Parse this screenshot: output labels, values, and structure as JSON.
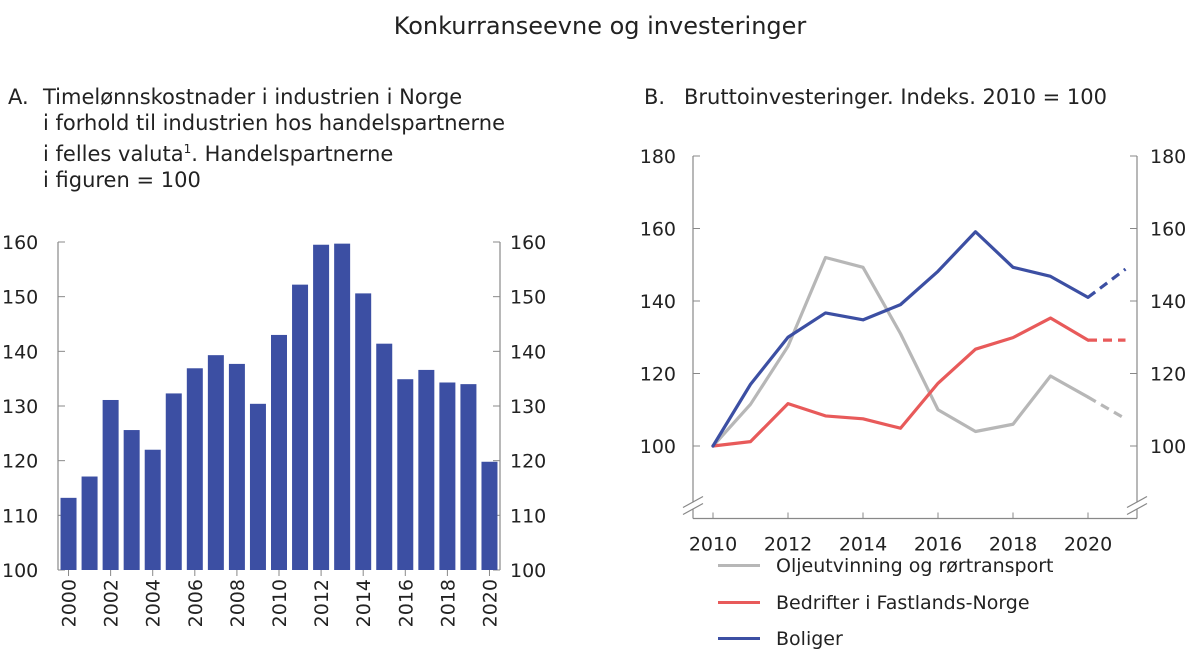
{
  "main_title": "Konkurranseevne og investeringer",
  "colors": {
    "bar": "#3c4fa3",
    "oil": "#b7b7b7",
    "mainland": "#e85a5a",
    "housing": "#3c4fa3",
    "axis": "#888888"
  },
  "chart_data": [
    {
      "type": "bar",
      "letter": "A.",
      "title_lines": [
        "Timelønnskostnader i industrien i Norge",
        "i forhold til industrien hos handelspartnerne",
        "i felles valuta",
        ". Handelspartnerne",
        "i figuren = 100"
      ],
      "footnote_mark": "1",
      "categories": [
        "2000",
        "2001",
        "2002",
        "2003",
        "2004",
        "2005",
        "2006",
        "2007",
        "2008",
        "2009",
        "2010",
        "2011",
        "2012",
        "2013",
        "2014",
        "2015",
        "2016",
        "2017",
        "2018",
        "2019",
        "2020"
      ],
      "tick_labels": [
        "2000",
        "2002",
        "2004",
        "2006",
        "2008",
        "2010",
        "2012",
        "2014",
        "2016",
        "2018",
        "2020"
      ],
      "values": [
        113.2,
        117.1,
        131.1,
        125.6,
        122.0,
        132.3,
        136.9,
        139.3,
        137.7,
        130.4,
        143.0,
        152.2,
        159.5,
        159.7,
        150.6,
        141.4,
        134.9,
        136.6,
        134.3,
        134.0,
        119.8
      ],
      "ylim": [
        100,
        160
      ],
      "yticks": [
        100,
        110,
        120,
        130,
        140,
        150,
        160
      ],
      "grid": false
    },
    {
      "type": "line",
      "letter": "B.",
      "title": "Bruttoinvesteringer. Indeks. 2010 = 100",
      "x": [
        2010,
        2011,
        2012,
        2013,
        2014,
        2015,
        2016,
        2017,
        2018,
        2019,
        2020,
        2021
      ],
      "xticks": [
        2010,
        2012,
        2014,
        2016,
        2018,
        2020
      ],
      "ylim": [
        80,
        180
      ],
      "yticks": [
        100,
        120,
        140,
        160,
        180
      ],
      "projection_from": 2020,
      "legend_position": "bottom",
      "grid": false,
      "series": [
        {
          "name": "Oljeutvinning og rørtransport",
          "color_key": "oil",
          "values": [
            100,
            111.5,
            127.5,
            152.0,
            149.3,
            131.0,
            110.0,
            104.0,
            106.0,
            119.3,
            113.5,
            107.5
          ]
        },
        {
          "name": "Bedrifter i Fastlands-Norge",
          "color_key": "mainland",
          "values": [
            100,
            101.2,
            111.7,
            108.3,
            107.5,
            104.9,
            117.3,
            126.7,
            129.9,
            135.3,
            129.2,
            129.2
          ]
        },
        {
          "name": "Boliger",
          "color_key": "housing",
          "values": [
            100,
            117.0,
            130.0,
            136.7,
            134.8,
            139.0,
            148.2,
            159.1,
            149.3,
            146.8,
            141.0,
            148.8
          ]
        }
      ]
    }
  ]
}
